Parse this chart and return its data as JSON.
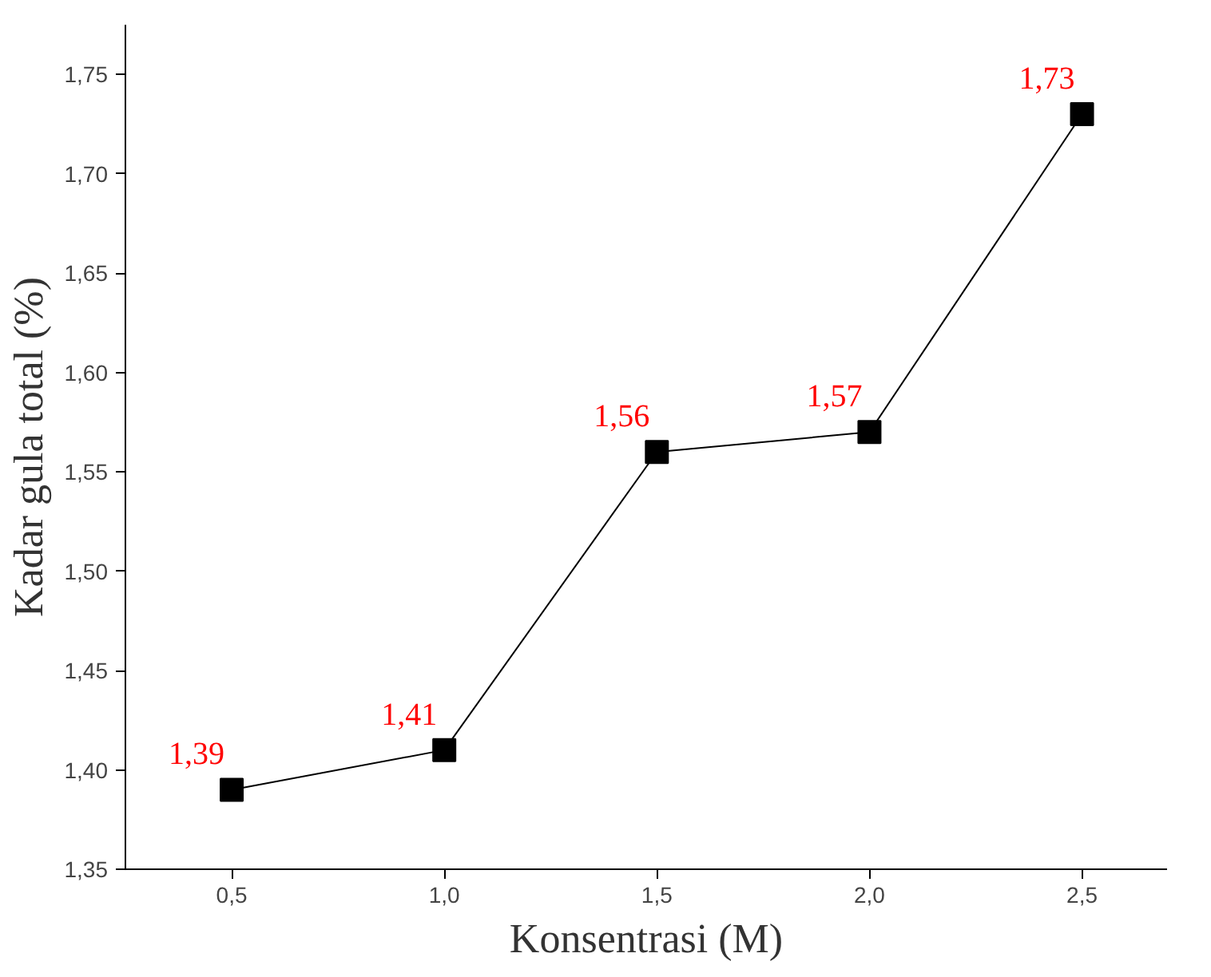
{
  "chart_data": {
    "type": "line",
    "xlabel": "Konsentrasi (M)",
    "ylabel": "Kadar gula total (%)",
    "x": [
      0.5,
      1.0,
      1.5,
      2.0,
      2.5
    ],
    "series": [
      {
        "color": "#000000",
        "values": [
          1.39,
          1.41,
          1.56,
          1.57,
          1.73
        ],
        "value_labels": [
          "1,39",
          "1,41",
          "1,56",
          "1,57",
          "1,73"
        ]
      }
    ],
    "xlim": [
      0.25,
      2.7
    ],
    "ylim": [
      1.35,
      1.775
    ],
    "xticks": [
      {
        "value": 0.5,
        "label": "0,5"
      },
      {
        "value": 1.0,
        "label": "1,0"
      },
      {
        "value": 1.5,
        "label": "1,5"
      },
      {
        "value": 2.0,
        "label": "2,0"
      },
      {
        "value": 2.5,
        "label": "2,5"
      }
    ],
    "yticks": [
      {
        "value": 1.35,
        "label": "1,35"
      },
      {
        "value": 1.4,
        "label": "1,40"
      },
      {
        "value": 1.45,
        "label": "1,45"
      },
      {
        "value": 1.5,
        "label": "1,50"
      },
      {
        "value": 1.55,
        "label": "1,55"
      },
      {
        "value": 1.6,
        "label": "1,60"
      },
      {
        "value": 1.65,
        "label": "1,65"
      },
      {
        "value": 1.7,
        "label": "1,70"
      },
      {
        "value": 1.75,
        "label": "1,75"
      }
    ],
    "marker": "square",
    "line_style": "solid",
    "grid": false
  }
}
